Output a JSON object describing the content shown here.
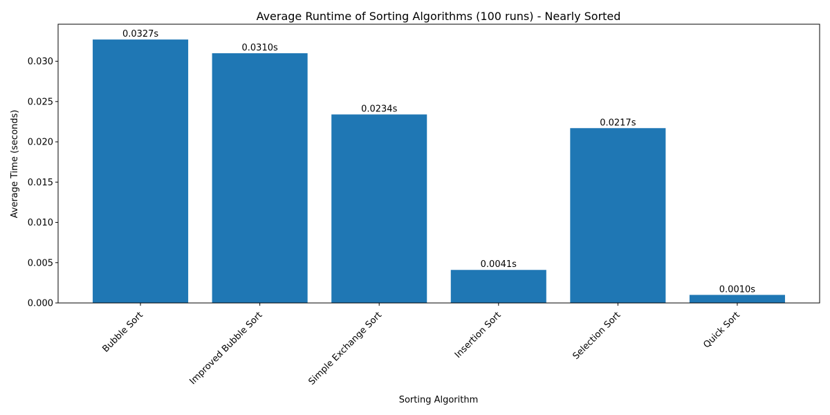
{
  "chart_data": {
    "type": "bar",
    "title": "Average Runtime of Sorting Algorithms (100 runs) - Nearly Sorted",
    "x_label": "Sorting Algorithm",
    "y_label": "Average Time (seconds)",
    "categories": [
      "Bubble Sort",
      "Improved Bubble Sort",
      "Simple Exchange Sort",
      "Insertion Sort",
      "Selection Sort",
      "Quick Sort"
    ],
    "values": [
      0.0327,
      0.031,
      0.0234,
      0.0041,
      0.0217,
      0.001
    ],
    "value_labels": [
      "0.0327s",
      "0.0310s",
      "0.0234s",
      "0.0041s",
      "0.0217s",
      "0.0010s"
    ],
    "color": "#1f77b4",
    "ylim": [
      0,
      0.0346
    ],
    "yticks": [
      {
        "value": 0,
        "label": "0.000"
      },
      {
        "value": 0.005,
        "label": "0.005"
      },
      {
        "value": 0.01,
        "label": "0.010"
      },
      {
        "value": 0.015,
        "label": "0.015"
      },
      {
        "value": 0.02,
        "label": "0.020"
      },
      {
        "value": 0.025,
        "label": "0.025"
      },
      {
        "value": 0.03,
        "label": "0.030"
      }
    ],
    "grid": false
  }
}
